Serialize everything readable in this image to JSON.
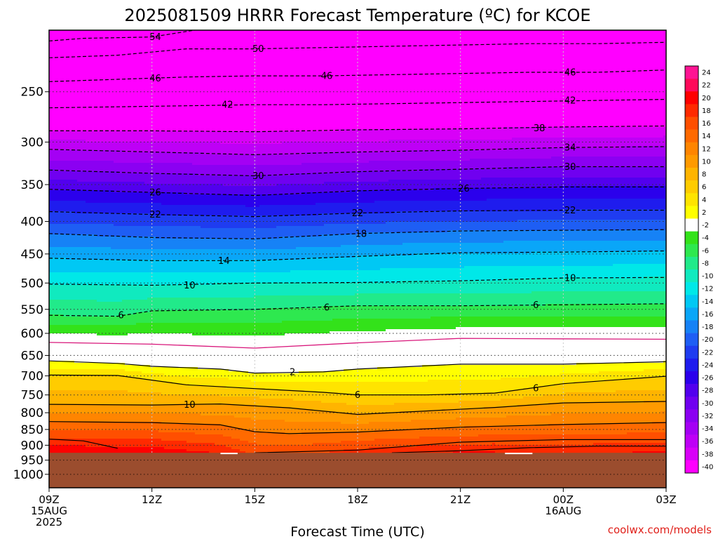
{
  "chart_data": {
    "type": "heatmap",
    "title": "2025081509 HRRR Forecast Temperature (ºC) for KCOE",
    "xlabel": "Forecast Time (UTC)",
    "ylabel": "",
    "x_ticks": [
      {
        "h": 0,
        "line1": "09Z",
        "line2": "15AUG",
        "line3": "2025"
      },
      {
        "h": 3,
        "line1": "12Z",
        "line2": "",
        "line3": ""
      },
      {
        "h": 6,
        "line1": "15Z",
        "line2": "",
        "line3": ""
      },
      {
        "h": 9,
        "line1": "18Z",
        "line2": "",
        "line3": ""
      },
      {
        "h": 12,
        "line1": "21Z",
        "line2": "",
        "line3": ""
      },
      {
        "h": 15,
        "line1": "00Z",
        "line2": "16AUG",
        "line3": ""
      },
      {
        "h": 18,
        "line1": "03Z",
        "line2": "",
        "line3": ""
      }
    ],
    "xlim": [
      0,
      18
    ],
    "y_axis": "pressure (hPa), log scale, inverted",
    "ylim": [
      1050,
      200
    ],
    "y_ticks": [
      250,
      300,
      350,
      400,
      450,
      500,
      550,
      600,
      650,
      700,
      750,
      800,
      850,
      900,
      950,
      1000
    ],
    "surface_pressure_hPa": 925,
    "colorbar": {
      "levels": [
        24,
        22,
        20,
        18,
        16,
        14,
        12,
        10,
        8,
        6,
        4,
        2,
        -2,
        -4,
        -6,
        -8,
        -10,
        -12,
        -14,
        -16,
        -18,
        -20,
        -22,
        -24,
        -26,
        -28,
        -30,
        -32,
        -34,
        -36,
        -38,
        -40
      ],
      "colors": [
        "#ff1493",
        "#ff0a5a",
        "#ff0000",
        "#ff2a00",
        "#ff4f00",
        "#ff6a00",
        "#ff8500",
        "#ff9a00",
        "#ffb400",
        "#ffcc00",
        "#ffe400",
        "#ffff00",
        "#ffffff",
        "#33e21a",
        "#2ee84f",
        "#21ea8a",
        "#10eabf",
        "#00e8e8",
        "#00c8f4",
        "#0aa6f8",
        "#1682f6",
        "#1e5ef4",
        "#1f3cf0",
        "#1f1cee",
        "#2b00ec",
        "#5200ee",
        "#7000f0",
        "#8b00f2",
        "#a400f4",
        "#be00f6",
        "#d800f8",
        "#ff00ff"
      ]
    },
    "series": [
      {
        "name": "Temperature contours (ºC)",
        "isotherms": [
          {
            "value": -54,
            "label": "54",
            "points": [
              [
                0,
                208
              ],
              [
                1,
                206
              ],
              [
                3,
                205
              ],
              [
                5,
                197
              ],
              [
                7,
                197
              ],
              [
                9,
                196
              ],
              [
                11,
                196
              ],
              [
                13,
                196
              ],
              [
                15,
                196
              ],
              [
                17,
                196
              ],
              [
                18,
                196
              ]
            ]
          },
          {
            "value": -50,
            "label": "50",
            "points": [
              [
                0,
                221
              ],
              [
                2,
                219
              ],
              [
                4,
                214
              ],
              [
                6,
                214
              ],
              [
                8,
                213
              ],
              [
                10,
                212
              ],
              [
                12,
                211
              ],
              [
                14,
                210
              ],
              [
                16,
                210
              ],
              [
                18,
                209
              ]
            ]
          },
          {
            "value": -46,
            "label": "46",
            "points": [
              [
                0,
                241
              ],
              [
                2,
                239
              ],
              [
                4,
                237
              ],
              [
                6,
                236
              ],
              [
                8,
                236
              ],
              [
                10,
                235
              ],
              [
                12,
                234
              ],
              [
                14,
                233
              ],
              [
                16,
                233
              ],
              [
                18,
                231
              ]
            ]
          },
          {
            "value": -42,
            "label": "42",
            "points": [
              [
                0,
                265
              ],
              [
                2,
                264
              ],
              [
                4,
                263
              ],
              [
                6,
                262
              ],
              [
                8,
                262
              ],
              [
                10,
                261
              ],
              [
                12,
                260
              ],
              [
                14,
                259
              ],
              [
                16,
                258
              ],
              [
                18,
                257
              ]
            ]
          },
          {
            "value": -38,
            "label": "38",
            "points": [
              [
                0,
                288
              ],
              [
                3,
                288
              ],
              [
                6,
                289
              ],
              [
                9,
                287
              ],
              [
                12,
                286
              ],
              [
                15,
                284
              ],
              [
                18,
                283
              ]
            ]
          },
          {
            "value": -34,
            "label": "34",
            "points": [
              [
                0,
                308
              ],
              [
                3,
                311
              ],
              [
                6,
                314
              ],
              [
                9,
                311
              ],
              [
                12,
                309
              ],
              [
                15,
                306
              ],
              [
                18,
                305
              ]
            ]
          },
          {
            "value": -30,
            "label": "30",
            "points": [
              [
                0,
                332
              ],
              [
                3,
                336
              ],
              [
                6,
                339
              ],
              [
                9,
                334
              ],
              [
                12,
                331
              ],
              [
                15,
                328
              ],
              [
                18,
                328
              ]
            ]
          },
          {
            "value": -26,
            "label": "26",
            "points": [
              [
                0,
                356
              ],
              [
                3,
                360
              ],
              [
                6,
                364
              ],
              [
                9,
                358
              ],
              [
                12,
                355
              ],
              [
                15,
                353
              ],
              [
                18,
                353
              ]
            ]
          },
          {
            "value": -22,
            "label": "22",
            "points": [
              [
                0,
                386
              ],
              [
                3,
                390
              ],
              [
                6,
                393
              ],
              [
                9,
                388
              ],
              [
                12,
                385
              ],
              [
                15,
                384
              ],
              [
                18,
                384
              ]
            ]
          },
          {
            "value": -18,
            "label": "18",
            "points": [
              [
                0,
                418
              ],
              [
                3,
                424
              ],
              [
                6,
                426
              ],
              [
                9,
                418
              ],
              [
                12,
                414
              ],
              [
                15,
                413
              ],
              [
                18,
                412
              ]
            ]
          },
          {
            "value": -14,
            "label": "14",
            "points": [
              [
                0,
                457
              ],
              [
                3,
                461
              ],
              [
                6,
                461
              ],
              [
                9,
                454
              ],
              [
                12,
                448
              ],
              [
                15,
                447
              ],
              [
                18,
                445
              ]
            ]
          },
          {
            "value": -10,
            "label": "10",
            "points": [
              [
                0,
                502
              ],
              [
                3,
                504
              ],
              [
                6,
                500
              ],
              [
                9,
                499
              ],
              [
                12,
                496
              ],
              [
                15,
                491
              ],
              [
                18,
                490
              ]
            ]
          },
          {
            "value": -6,
            "label": "6",
            "points": [
              [
                0,
                562
              ],
              [
                2,
                564
              ],
              [
                3,
                553
              ],
              [
                6,
                550
              ],
              [
                9,
                543
              ],
              [
                12,
                543
              ],
              [
                15,
                541
              ],
              [
                18,
                539
              ]
            ]
          },
          {
            "value": 0,
            "label": "",
            "points": [
              [
                0,
                620
              ],
              [
                3,
                624
              ],
              [
                6,
                633
              ],
              [
                9,
                621
              ],
              [
                12,
                611
              ],
              [
                15,
                612
              ],
              [
                18,
                613
              ]
            ]
          },
          {
            "value": 2,
            "label": "2",
            "points": [
              [
                0,
                663
              ],
              [
                2,
                669
              ],
              [
                3,
                676
              ],
              [
                5,
                683
              ],
              [
                6,
                693
              ],
              [
                8,
                690
              ],
              [
                9,
                683
              ],
              [
                12,
                671
              ],
              [
                15,
                671
              ],
              [
                18,
                665
              ]
            ]
          },
          {
            "value": 6,
            "label": "6",
            "points": [
              [
                0,
                698
              ],
              [
                2,
                699
              ],
              [
                4,
                723
              ],
              [
                6,
                733
              ],
              [
                8,
                743
              ],
              [
                9,
                750
              ],
              [
                11,
                750
              ],
              [
                13,
                745
              ],
              [
                15,
                720
              ],
              [
                18,
                701
              ]
            ]
          },
          {
            "value": 10,
            "label": "10",
            "points": [
              [
                0,
                776
              ],
              [
                3,
                778
              ],
              [
                5,
                775
              ],
              [
                7,
                786
              ],
              [
                9,
                805
              ],
              [
                11,
                795
              ],
              [
                13,
                785
              ],
              [
                15,
                772
              ],
              [
                18,
                768
              ]
            ]
          },
          {
            "value": 14,
            "label": "",
            "points": [
              [
                0,
                826
              ],
              [
                3,
                829
              ],
              [
                5,
                836
              ],
              [
                6,
                857
              ],
              [
                7,
                863
              ],
              [
                9,
                858
              ],
              [
                12,
                843
              ],
              [
                15,
                835
              ],
              [
                18,
                829
              ]
            ]
          },
          {
            "value": 18,
            "label": "",
            "points": [
              [
                0,
                880
              ],
              [
                1,
                886
              ],
              [
                2,
                910
              ]
            ]
          },
          {
            "value": 18,
            "label": "",
            "points": [
              [
                6,
                925
              ],
              [
                9,
                916
              ],
              [
                12,
                890
              ],
              [
                15,
                882
              ],
              [
                18,
                882
              ]
            ]
          },
          {
            "value": 22,
            "label": "",
            "points": [
              [
                10,
                925
              ],
              [
                12,
                918
              ],
              [
                14,
                908
              ],
              [
                16,
                903
              ],
              [
                18,
                903
              ]
            ]
          }
        ]
      }
    ],
    "label_positions": [
      {
        "text": "54",
        "h": 3.1,
        "p": 205
      },
      {
        "text": "50",
        "h": 6.1,
        "p": 214
      },
      {
        "text": "46",
        "h": 3.1,
        "p": 238
      },
      {
        "text": "46",
        "h": 8.1,
        "p": 236
      },
      {
        "text": "46",
        "h": 15.2,
        "p": 233
      },
      {
        "text": "42",
        "h": 5.2,
        "p": 262
      },
      {
        "text": "42",
        "h": 15.2,
        "p": 258
      },
      {
        "text": "38",
        "h": 14.3,
        "p": 285
      },
      {
        "text": "34",
        "h": 15.2,
        "p": 306
      },
      {
        "text": "30",
        "h": 6.1,
        "p": 339
      },
      {
        "text": "30",
        "h": 15.2,
        "p": 328
      },
      {
        "text": "26",
        "h": 3.1,
        "p": 360
      },
      {
        "text": "26",
        "h": 12.1,
        "p": 355
      },
      {
        "text": "22",
        "h": 3.1,
        "p": 390
      },
      {
        "text": "22",
        "h": 9.0,
        "p": 388
      },
      {
        "text": "22",
        "h": 15.2,
        "p": 384
      },
      {
        "text": "18",
        "h": 9.1,
        "p": 418
      },
      {
        "text": "14",
        "h": 5.1,
        "p": 461
      },
      {
        "text": "10",
        "h": 4.1,
        "p": 504
      },
      {
        "text": "10",
        "h": 15.2,
        "p": 491
      },
      {
        "text": "6",
        "h": 2.1,
        "p": 562
      },
      {
        "text": "6",
        "h": 8.1,
        "p": 546
      },
      {
        "text": "6",
        "h": 14.2,
        "p": 541
      },
      {
        "text": "2",
        "h": 7.1,
        "p": 690
      },
      {
        "text": "6",
        "h": 9.0,
        "p": 750
      },
      {
        "text": "6",
        "h": 14.2,
        "p": 732
      },
      {
        "text": "10",
        "h": 4.1,
        "p": 777
      }
    ]
  },
  "credit": "coolwx.com/models"
}
